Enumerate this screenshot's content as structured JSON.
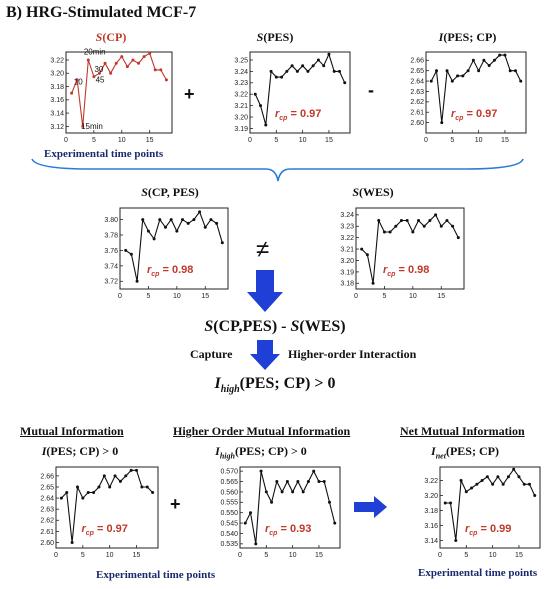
{
  "panel_title": "B) HRG-Stimulated MCF-7",
  "top": {
    "op_plus": "+",
    "op_minus": "-",
    "xlabel": "Experimental time points"
  },
  "middle": {
    "neq": "≠",
    "formula": "S(CP,PES) - S(WES)",
    "capture": "Capture",
    "higher_order": "Higher-order Interaction",
    "ihigh": "I_high(PES; CP) > 0"
  },
  "bottom": {
    "mutual_header": "Mutual Information",
    "higher_header": "Higher Order Mutual Information",
    "net_header": "Net Mutual Information",
    "op_plus": "+",
    "xlabel": "Experimental time points"
  },
  "colors": {
    "red": "#c0392b",
    "blue": "#1f3fd6",
    "navy": "#1a2a6c",
    "bracket": "#2b7bd6"
  },
  "chart_data": [
    {
      "id": "scp",
      "type": "line",
      "title": "S(CP)",
      "title_color": "#c0392b",
      "x": [
        1,
        2,
        3,
        4,
        5,
        6,
        7,
        8,
        9,
        10,
        11,
        12,
        13,
        14,
        15,
        16,
        17,
        18
      ],
      "values": [
        3.17,
        3.19,
        3.12,
        3.22,
        3.195,
        3.2,
        3.215,
        3.2,
        3.215,
        3.225,
        3.21,
        3.22,
        3.215,
        3.225,
        3.23,
        3.205,
        3.205,
        3.19
      ],
      "yticks": [
        "3.12",
        "3.14",
        "3.16",
        "3.18",
        "3.20",
        "3.22"
      ],
      "ylim": [
        3.11,
        3.232
      ],
      "xticks": [
        "0",
        "5",
        "10",
        "15"
      ],
      "xlim": [
        0,
        19
      ],
      "line_color": "#c0392b",
      "annotations": [
        {
          "text": "10",
          "x": 1.4,
          "y": 3.183
        },
        {
          "text": "15min",
          "x": 2.7,
          "y": 3.116
        },
        {
          "text": "20min",
          "x": 3.2,
          "y": 3.228
        },
        {
          "text": "30",
          "x": 5.1,
          "y": 3.202
        },
        {
          "text": "45",
          "x": 5.3,
          "y": 3.186
        }
      ]
    },
    {
      "id": "spes",
      "type": "line",
      "title": "S(PES)",
      "rcp": "0.97",
      "x": [
        1,
        2,
        3,
        4,
        5,
        6,
        7,
        8,
        9,
        10,
        11,
        12,
        13,
        14,
        15,
        16,
        17,
        18
      ],
      "values": [
        3.22,
        3.21,
        3.193,
        3.24,
        3.235,
        3.235,
        3.24,
        3.245,
        3.24,
        3.245,
        3.24,
        3.245,
        3.25,
        3.245,
        3.255,
        3.24,
        3.24,
        3.23
      ],
      "yticks": [
        "3.19",
        "3.20",
        "3.21",
        "3.22",
        "3.23",
        "3.24",
        "3.25"
      ],
      "ylim": [
        3.186,
        3.257
      ],
      "xticks": [
        "0",
        "5",
        "10",
        "15"
      ],
      "xlim": [
        0,
        19
      ],
      "line_color": "#111"
    },
    {
      "id": "ipescp",
      "type": "line",
      "title": "I(PES; CP)",
      "rcp": "0.97",
      "x": [
        1,
        2,
        3,
        4,
        5,
        6,
        7,
        8,
        9,
        10,
        11,
        12,
        13,
        14,
        15,
        16,
        17,
        18
      ],
      "values": [
        2.64,
        2.65,
        2.6,
        2.65,
        2.64,
        2.645,
        2.645,
        2.65,
        2.66,
        2.65,
        2.66,
        2.655,
        2.66,
        2.665,
        2.665,
        2.65,
        2.65,
        2.64
      ],
      "yticks": [
        "2.60",
        "2.61",
        "2.62",
        "2.63",
        "2.64",
        "2.65",
        "2.66"
      ],
      "ylim": [
        2.59,
        2.668
      ],
      "xticks": [
        "0",
        "5",
        "10",
        "15"
      ],
      "xlim": [
        0,
        19
      ],
      "line_color": "#111"
    },
    {
      "id": "scppes",
      "type": "line",
      "title": "S(CP, PES)",
      "rcp": "0.98",
      "x": [
        1,
        2,
        3,
        4,
        5,
        6,
        7,
        8,
        9,
        10,
        11,
        12,
        13,
        14,
        15,
        16,
        17,
        18
      ],
      "values": [
        3.76,
        3.755,
        3.72,
        3.8,
        3.785,
        3.775,
        3.8,
        3.79,
        3.8,
        3.785,
        3.8,
        3.795,
        3.8,
        3.81,
        3.79,
        3.8,
        3.795,
        3.77
      ],
      "yticks": [
        "3.72",
        "3.74",
        "3.76",
        "3.78",
        "3.80"
      ],
      "ylim": [
        3.71,
        3.815
      ],
      "xticks": [
        "0",
        "5",
        "10",
        "15"
      ],
      "xlim": [
        0,
        19
      ],
      "line_color": "#111"
    },
    {
      "id": "swes",
      "type": "line",
      "title": "S(WES)",
      "rcp": "0.98",
      "x": [
        1,
        2,
        3,
        4,
        5,
        6,
        7,
        8,
        9,
        10,
        11,
        12,
        13,
        14,
        15,
        16,
        17,
        18
      ],
      "values": [
        3.21,
        3.205,
        3.18,
        3.235,
        3.225,
        3.225,
        3.23,
        3.235,
        3.235,
        3.225,
        3.235,
        3.23,
        3.235,
        3.24,
        3.23,
        3.235,
        3.23,
        3.22
      ],
      "yticks": [
        "3.18",
        "3.19",
        "3.20",
        "3.21",
        "3.22",
        "3.23",
        "3.24"
      ],
      "ylim": [
        3.175,
        3.246
      ],
      "xticks": [
        "0",
        "5",
        "10",
        "15"
      ],
      "xlim": [
        0,
        19
      ],
      "line_color": "#111"
    },
    {
      "id": "mi",
      "type": "line",
      "title": "I(PES; CP) > 0",
      "rcp": "0.97",
      "x": [
        1,
        2,
        3,
        4,
        5,
        6,
        7,
        8,
        9,
        10,
        11,
        12,
        13,
        14,
        15,
        16,
        17,
        18
      ],
      "values": [
        2.64,
        2.645,
        2.6,
        2.65,
        2.64,
        2.645,
        2.645,
        2.65,
        2.66,
        2.65,
        2.66,
        2.655,
        2.66,
        2.665,
        2.665,
        2.65,
        2.65,
        2.645
      ],
      "yticks": [
        "2.60",
        "2.61",
        "2.62",
        "2.63",
        "2.64",
        "2.65",
        "2.66"
      ],
      "ylim": [
        2.595,
        2.668
      ],
      "xticks": [
        "0",
        "5",
        "10",
        "15"
      ],
      "xlim": [
        0,
        19
      ],
      "line_color": "#111"
    },
    {
      "id": "hmi",
      "type": "line",
      "title": "I_high(PES; CP) > 0",
      "rcp": "0.93",
      "x": [
        1,
        2,
        3,
        4,
        5,
        6,
        7,
        8,
        9,
        10,
        11,
        12,
        13,
        14,
        15,
        16,
        17,
        18
      ],
      "values": [
        0.545,
        0.55,
        0.535,
        0.57,
        0.56,
        0.555,
        0.565,
        0.56,
        0.565,
        0.56,
        0.565,
        0.56,
        0.565,
        0.57,
        0.565,
        0.565,
        0.555,
        0.545
      ],
      "yticks": [
        "0.535",
        "0.540",
        "0.545",
        "0.550",
        "0.555",
        "0.560",
        "0.565",
        "0.570"
      ],
      "ylim": [
        0.533,
        0.572
      ],
      "xticks": [
        "0",
        "5",
        "10",
        "15"
      ],
      "xlim": [
        0,
        19
      ],
      "line_color": "#111"
    },
    {
      "id": "nmi",
      "type": "line",
      "title": "I_net(PES; CP)",
      "rcp": "0.99",
      "x": [
        1,
        2,
        3,
        4,
        5,
        6,
        7,
        8,
        9,
        10,
        11,
        12,
        13,
        14,
        15,
        16,
        17,
        18
      ],
      "values": [
        3.19,
        3.19,
        3.14,
        3.22,
        3.205,
        3.21,
        3.215,
        3.22,
        3.225,
        3.215,
        3.225,
        3.215,
        3.225,
        3.235,
        3.225,
        3.215,
        3.215,
        3.2
      ],
      "yticks": [
        "3.14",
        "3.16",
        "3.18",
        "3.20",
        "3.22"
      ],
      "ylim": [
        3.13,
        3.238
      ],
      "xticks": [
        "0",
        "5",
        "10",
        "15"
      ],
      "xlim": [
        0,
        19
      ],
      "line_color": "#111"
    }
  ]
}
